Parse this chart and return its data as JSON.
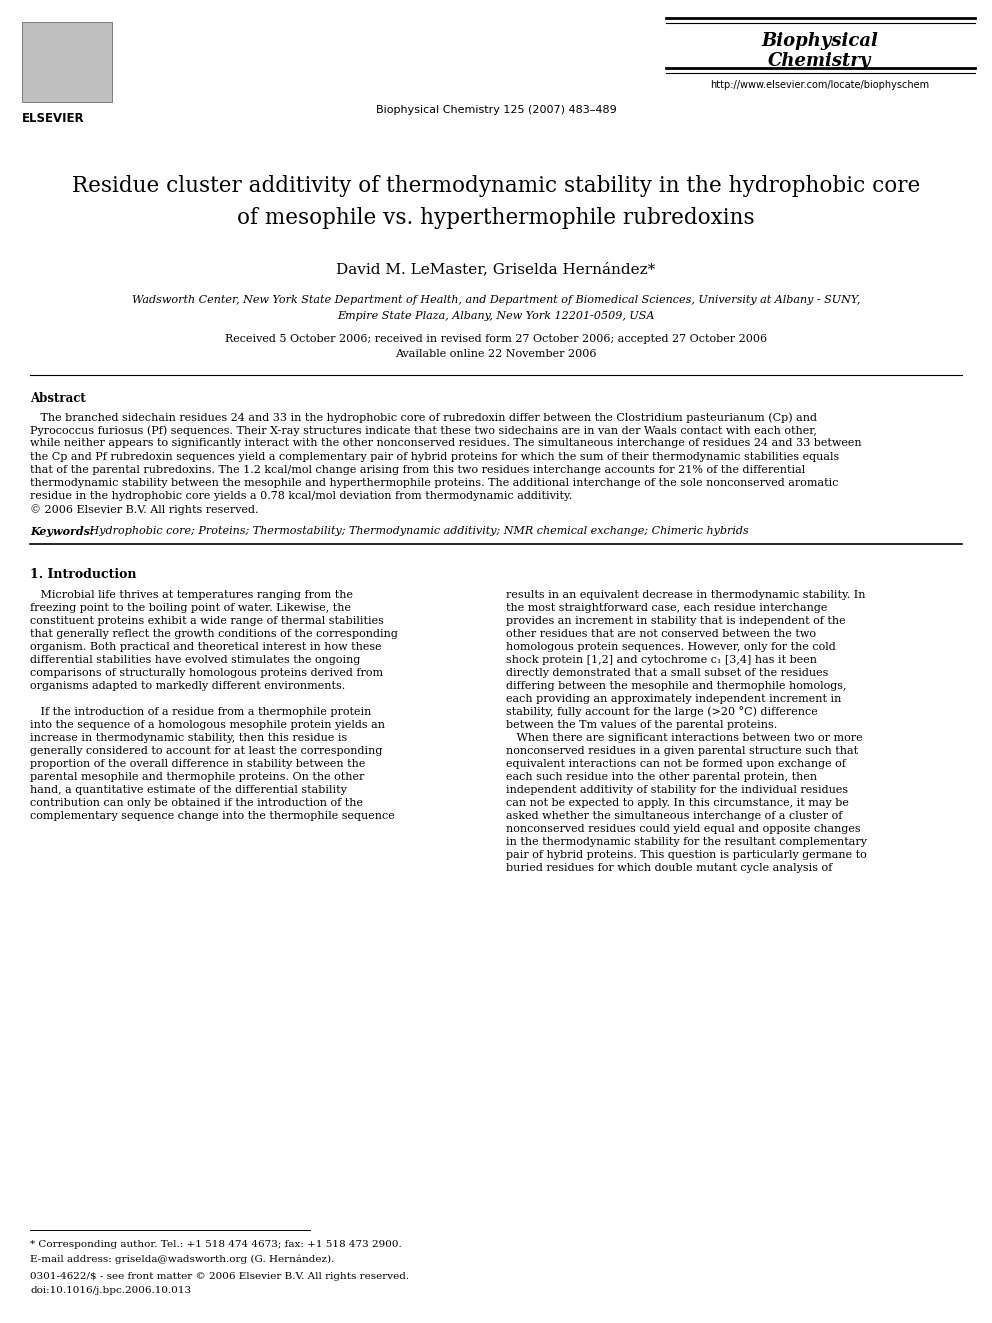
{
  "title_line1": "Residue cluster additivity of thermodynamic stability in the hydrophobic core",
  "title_line2": "of mesophile vs. hyperthermophile rubredoxins",
  "authors": "David M. LeMaster, Griselda Hernández*",
  "affiliation1": "Wadsworth Center, New York State Department of Health, and Department of Biomedical Sciences, University at Albany - SUNY,",
  "affiliation2": "Empire State Plaza, Albany, New York 12201-0509, USA",
  "received": "Received 5 October 2006; received in revised form 27 October 2006; accepted 27 October 2006",
  "available": "Available online 22 November 2006",
  "journal_center": "Biophysical Chemistry 125 (2007) 483–489",
  "journal_right_line1": "Biophysical",
  "journal_right_line2": "Chemistry",
  "url": "http://www.elsevier.com/locate/biophyschem",
  "abstract_title": "Abstract",
  "abstract_lines": [
    "   The branched sidechain residues 24 and 33 in the hydrophobic core of rubredoxin differ between the Clostridium pasteurianum (Cp) and",
    "Pyrococcus furiosus (Pf) sequences. Their X-ray structures indicate that these two sidechains are in van der Waals contact with each other,",
    "while neither appears to significantly interact with the other nonconserved residues. The simultaneous interchange of residues 24 and 33 between",
    "the Cp and Pf rubredoxin sequences yield a complementary pair of hybrid proteins for which the sum of their thermodynamic stabilities equals",
    "that of the parental rubredoxins. The 1.2 kcal/mol change arising from this two residues interchange accounts for 21% of the differential",
    "thermodynamic stability between the mesophile and hyperthermophile proteins. The additional interchange of the sole nonconserved aromatic",
    "residue in the hydrophobic core yields a 0.78 kcal/mol deviation from thermodynamic additivity.",
    "© 2006 Elsevier B.V. All rights reserved."
  ],
  "keywords_label": "Keywords:",
  "keywords_text": " Hydrophobic core; Proteins; Thermostability; Thermodynamic additivity; NMR chemical exchange; Chimeric hybrids",
  "section1_title": "1. Introduction",
  "col1_lines": [
    "   Microbial life thrives at temperatures ranging from the",
    "freezing point to the boiling point of water. Likewise, the",
    "constituent proteins exhibit a wide range of thermal stabilities",
    "that generally reflect the growth conditions of the corresponding",
    "organism. Both practical and theoretical interest in how these",
    "differential stabilities have evolved stimulates the ongoing",
    "comparisons of structurally homologous proteins derived from",
    "organisms adapted to markedly different environments.",
    "",
    "   If the introduction of a residue from a thermophile protein",
    "into the sequence of a homologous mesophile protein yields an",
    "increase in thermodynamic stability, then this residue is",
    "generally considered to account for at least the corresponding",
    "proportion of the overall difference in stability between the",
    "parental mesophile and thermophile proteins. On the other",
    "hand, a quantitative estimate of the differential stability",
    "contribution can only be obtained if the introduction of the",
    "complementary sequence change into the thermophile sequence"
  ],
  "col2_lines": [
    "results in an equivalent decrease in thermodynamic stability. In",
    "the most straightforward case, each residue interchange",
    "provides an increment in stability that is independent of the",
    "other residues that are not conserved between the two",
    "homologous protein sequences. However, only for the cold",
    "shock protein [1,2] and cytochrome c₁ [3,4] has it been",
    "directly demonstrated that a small subset of the residues",
    "differing between the mesophile and thermophile homologs,",
    "each providing an approximately independent increment in",
    "stability, fully account for the large (>20 °C) difference",
    "between the Tm values of the parental proteins.",
    "   When there are significant interactions between two or more",
    "nonconserved residues in a given parental structure such that",
    "equivalent interactions can not be formed upon exchange of",
    "each such residue into the other parental protein, then",
    "independent additivity of stability for the individual residues",
    "can not be expected to apply. In this circumstance, it may be",
    "asked whether the simultaneous interchange of a cluster of",
    "nonconserved residues could yield equal and opposite changes",
    "in the thermodynamic stability for the resultant complementary",
    "pair of hybrid proteins. This question is particularly germane to",
    "buried residues for which double mutant cycle analysis of"
  ],
  "footnote_star": "* Corresponding author. Tel.: +1 518 474 4673; fax: +1 518 473 2900.",
  "footnote_email": "E-mail address: griselda@wadsworth.org (G. Hernández).",
  "footnote_issn": "0301-4622/$ - see front matter © 2006 Elsevier B.V. All rights reserved.",
  "footnote_doi": "doi:10.1016/j.bpc.2006.10.013"
}
